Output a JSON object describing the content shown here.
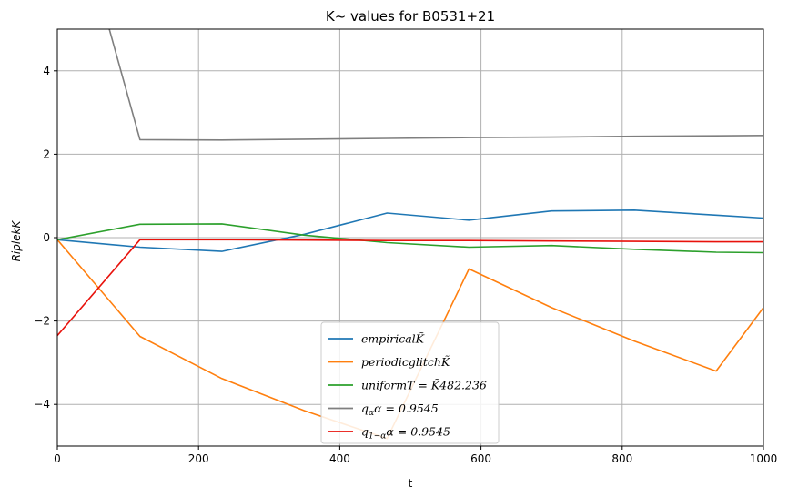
{
  "chart_data": {
    "type": "line",
    "title": "K~ values for B0531+21",
    "xlabel": "t",
    "ylabel": "RiplekK",
    "xlim": [
      0,
      1000
    ],
    "ylim": [
      -5,
      5
    ],
    "xticks": [
      0,
      200,
      400,
      600,
      800,
      1000
    ],
    "yticks": [
      -4,
      -2,
      0,
      2,
      4
    ],
    "xtick_labels": [
      "0",
      "200",
      "400",
      "600",
      "800",
      "1000"
    ],
    "ytick_labels": [
      "−4",
      "−2",
      "0",
      "2",
      "4"
    ],
    "grid": true,
    "legend_position": "lower-center",
    "series": [
      {
        "name": "empiricalK̃",
        "color": "#1f77b4",
        "x": [
          0,
          117,
          233,
          350,
          467,
          583,
          700,
          817,
          933,
          1000
        ],
        "y": [
          -0.05,
          -0.23,
          -0.33,
          0.08,
          0.59,
          0.42,
          0.64,
          0.66,
          0.54,
          0.47
        ]
      },
      {
        "name": "periodicglitchK̃",
        "color": "#ff7f0e",
        "x": [
          0,
          117,
          233,
          350,
          467,
          583,
          700,
          817,
          933,
          1000
        ],
        "y": [
          -0.05,
          -2.37,
          -3.38,
          -4.15,
          -4.82,
          -0.75,
          -1.68,
          -2.48,
          -3.2,
          -1.68
        ]
      },
      {
        "name": "uniformT=K̃482.236",
        "color": "#2ca02c",
        "x": [
          0,
          117,
          233,
          350,
          467,
          583,
          700,
          817,
          933,
          1000
        ],
        "y": [
          -0.05,
          0.32,
          0.33,
          0.06,
          -0.12,
          -0.23,
          -0.19,
          -0.28,
          -0.35,
          -0.36
        ]
      },
      {
        "name": "q_α α = 0.9545",
        "color": "#7f7f7f",
        "x": [
          0,
          117,
          233,
          350,
          467,
          583,
          700,
          817,
          933,
          1000
        ],
        "y": [
          9.5,
          2.35,
          2.34,
          2.36,
          2.38,
          2.4,
          2.41,
          2.43,
          2.44,
          2.45
        ]
      },
      {
        "name": "q_{1−α} α = 0.9545",
        "color": "#e8120c",
        "x": [
          0,
          117,
          233,
          350,
          467,
          583,
          700,
          817,
          933,
          1000
        ],
        "y": [
          -2.35,
          -0.05,
          -0.05,
          -0.06,
          -0.07,
          -0.07,
          -0.08,
          -0.09,
          -0.1,
          -0.1
        ]
      }
    ]
  },
  "legend": {
    "entries": [
      {
        "pre": "empirical",
        "tail": "K̃",
        "sub": "",
        "post": ""
      },
      {
        "pre": "periodicglitch",
        "tail": "K̃",
        "sub": "",
        "post": ""
      },
      {
        "pre": "uniformT = ",
        "tail": "K̃482.236",
        "sub": "",
        "post": ""
      },
      {
        "pre": "q",
        "tail": "",
        "sub": "α",
        "post": "α = 0.9545"
      },
      {
        "pre": "q",
        "tail": "",
        "sub": "1−α",
        "post": "α = 0.9545"
      }
    ]
  }
}
